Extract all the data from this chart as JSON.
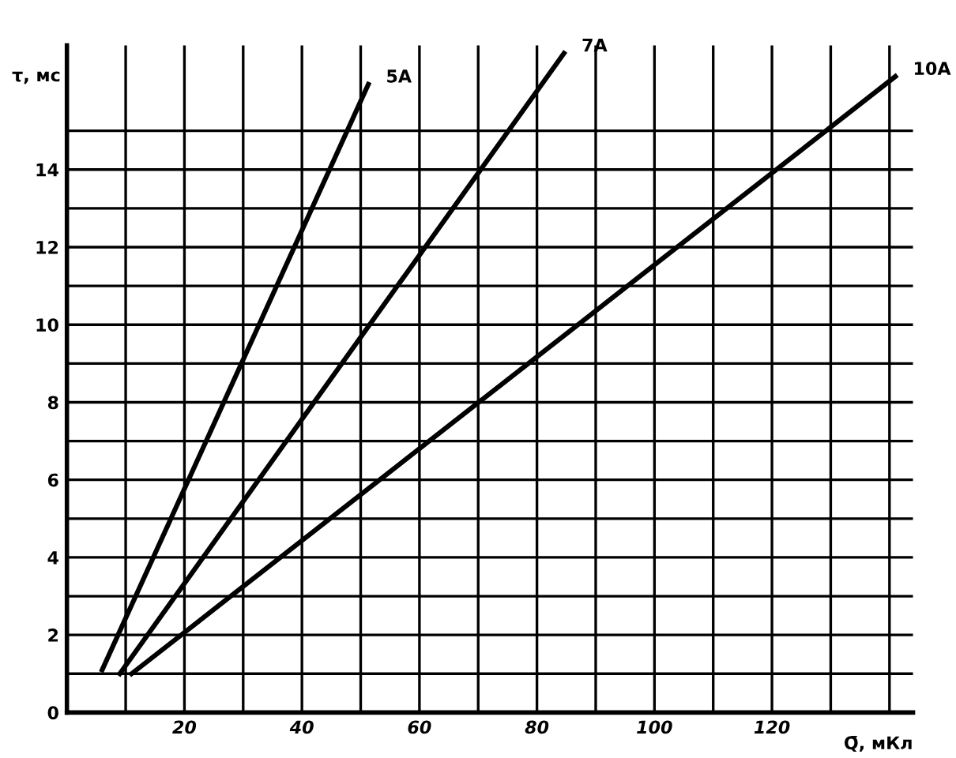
{
  "chart_data": {
    "type": "line",
    "xlabel": "Q̄, мКл",
    "ylabel": "τ, мс",
    "xlim": [
      0,
      144
    ],
    "ylim": [
      0,
      17.2
    ],
    "xticks": [
      {
        "value": 10,
        "label": null
      },
      20,
      {
        "value": 30,
        "label": null
      },
      40,
      {
        "value": 50,
        "label": null
      },
      60,
      {
        "value": 70,
        "label": null
      },
      80,
      {
        "value": 90,
        "label": null
      },
      100,
      {
        "value": 110,
        "label": null
      },
      120,
      {
        "value": 130,
        "label": null
      },
      {
        "value": 140,
        "label": null
      }
    ],
    "yticks": [
      0,
      {
        "value": 1,
        "label": null
      },
      2,
      {
        "value": 3,
        "label": null
      },
      4,
      {
        "value": 5,
        "label": null
      },
      6,
      {
        "value": 7,
        "label": null
      },
      8,
      {
        "value": 9,
        "label": null
      },
      10,
      {
        "value": 11,
        "label": null
      },
      12,
      {
        "value": 13,
        "label": null
      },
      14,
      {
        "value": 15,
        "label": null
      }
    ],
    "grid": true,
    "marker": "none",
    "line_style": "solid",
    "series": [
      {
        "name": "5A",
        "color": "#000000",
        "x": [
          6,
          51.3
        ],
        "values": [
          1.1,
          16.2
        ]
      },
      {
        "name": "7A",
        "color": "#000000",
        "x": [
          9,
          84.6
        ],
        "values": [
          1.0,
          17.0
        ]
      },
      {
        "name": "10A",
        "color": "#000000",
        "x": [
          11,
          141
        ],
        "values": [
          1.0,
          16.4
        ]
      }
    ]
  }
}
